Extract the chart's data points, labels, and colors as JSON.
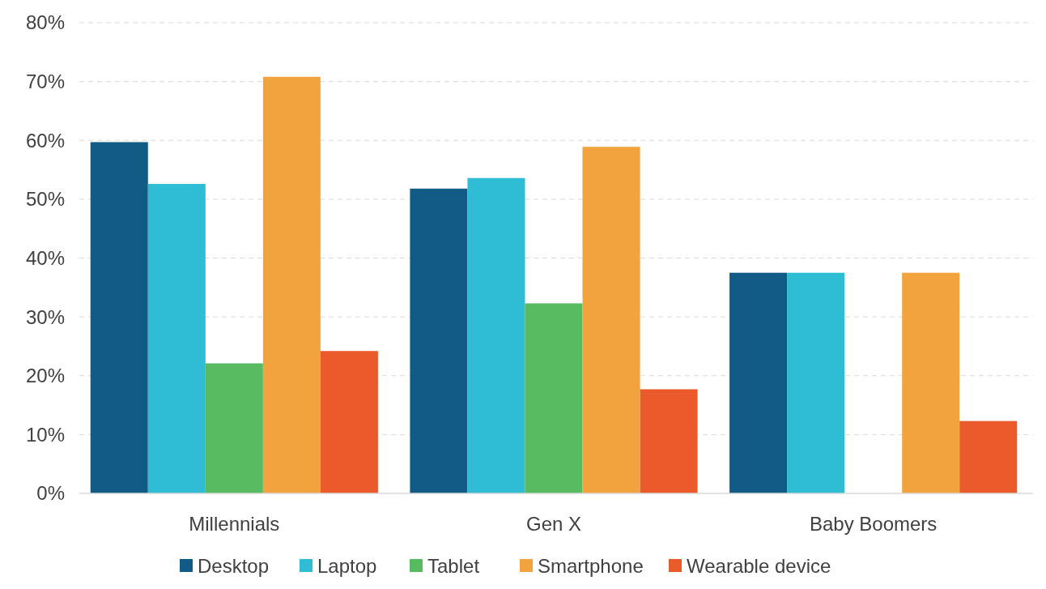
{
  "chart_data": {
    "type": "bar",
    "categories": [
      "Millennials",
      "Gen X",
      "Baby Boomers"
    ],
    "series": [
      {
        "name": "Desktop",
        "color": "#115b87",
        "values": [
          59.7,
          51.8,
          37.5
        ]
      },
      {
        "name": "Laptop",
        "color": "#2ebdd5",
        "values": [
          52.6,
          53.6,
          37.5
        ]
      },
      {
        "name": "Tablet",
        "color": "#58bb62",
        "values": [
          22.1,
          32.3,
          null
        ]
      },
      {
        "name": "Smartphone",
        "color": "#f2a33d",
        "values": [
          70.8,
          58.9,
          37.5
        ]
      },
      {
        "name": "Wearable device",
        "color": "#eb5a2b",
        "values": [
          24.2,
          17.7,
          12.3
        ]
      }
    ],
    "ylim": [
      0,
      80
    ],
    "yticks": [
      {
        "value": 0,
        "label": "0%"
      },
      {
        "value": 10,
        "label": "10%"
      },
      {
        "value": 20,
        "label": "20%"
      },
      {
        "value": 30,
        "label": "30%"
      },
      {
        "value": 40,
        "label": "40%"
      },
      {
        "value": 50,
        "label": "50%"
      },
      {
        "value": 60,
        "label": "60%"
      },
      {
        "value": 70,
        "label": "70%"
      },
      {
        "value": 80,
        "label": "80%"
      }
    ],
    "grid": "y",
    "legend": "bottom"
  }
}
